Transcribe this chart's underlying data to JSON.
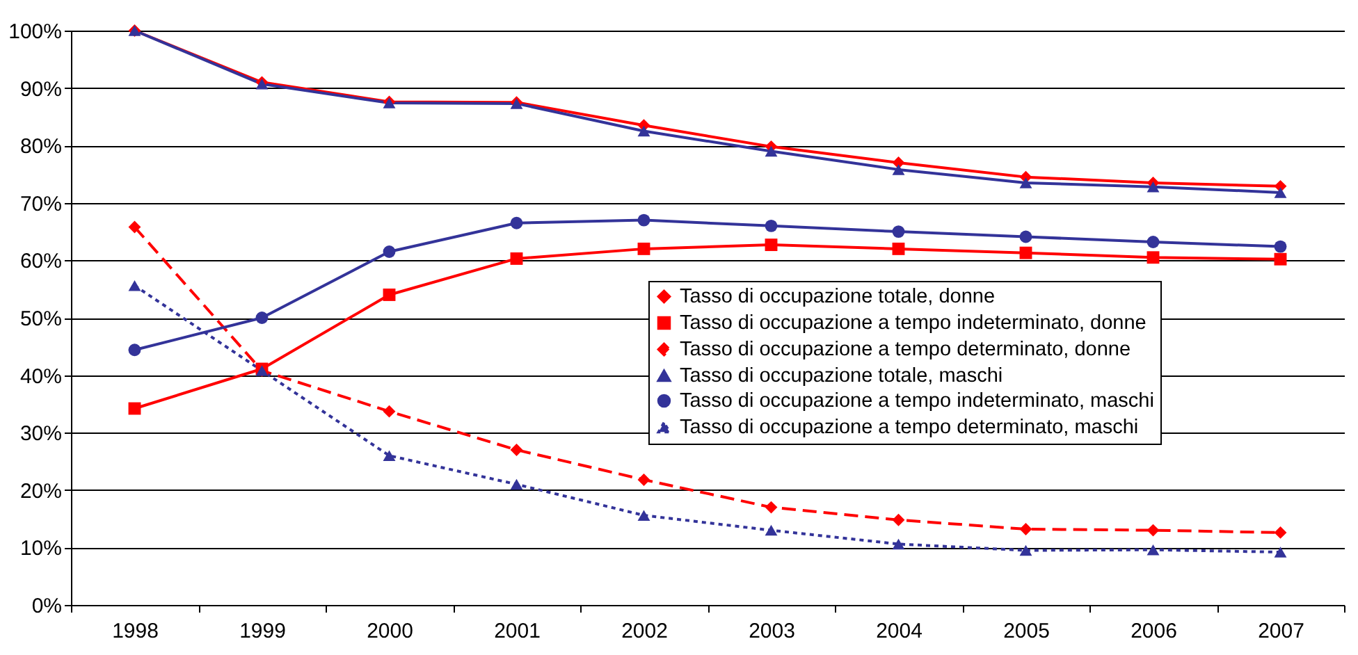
{
  "chart_data": {
    "type": "line",
    "categories": [
      "1998",
      "1999",
      "2000",
      "2001",
      "2002",
      "2003",
      "2004",
      "2005",
      "2006",
      "2007"
    ],
    "series": [
      {
        "name": "Tasso di occupazione totale, donne",
        "color": "#ff0000",
        "marker": "diamond",
        "line_style": "solid",
        "values": [
          100,
          91,
          87.6,
          87.5,
          83.5,
          79.8,
          77,
          74.5,
          73.5,
          72.9
        ]
      },
      {
        "name": "Tasso di occupazione a tempo indeterminato, donne",
        "color": "#ff0000",
        "marker": "square",
        "line_style": "solid",
        "values": [
          34.2,
          41.1,
          54,
          60.3,
          62,
          62.7,
          62,
          61.3,
          60.5,
          60.2
        ]
      },
      {
        "name": "Tasso di occupazione a tempo determinato, donne",
        "color": "#ff0000",
        "marker": "diamond",
        "line_style": "dashed",
        "values": [
          65.8,
          40.8,
          33.7,
          27,
          21.8,
          17,
          14.8,
          13.2,
          13,
          12.6
        ]
      },
      {
        "name": "Tasso di occupazione totale, maschi",
        "color": "#333399",
        "marker": "triangle",
        "line_style": "solid",
        "values": [
          100,
          90.7,
          87.4,
          87.3,
          82.5,
          79,
          75.8,
          73.5,
          72.8,
          71.8
        ]
      },
      {
        "name": "Tasso di occupazione a tempo indeterminato, maschi",
        "color": "#333399",
        "marker": "circle",
        "line_style": "solid",
        "values": [
          44.4,
          50,
          61.5,
          66.5,
          67,
          66,
          65,
          64.1,
          63.2,
          62.4
        ]
      },
      {
        "name": "Tasso di occupazione a tempo determinato, maschi",
        "color": "#333399",
        "marker": "triangle",
        "line_style": "dotted",
        "values": [
          55.6,
          40.8,
          26,
          21,
          15.6,
          13,
          10.6,
          9.5,
          9.6,
          9.2
        ]
      }
    ],
    "ylim": [
      0,
      100
    ],
    "yticks": [
      {
        "value": 0,
        "label": "0%"
      },
      {
        "value": 10,
        "label": "10%"
      },
      {
        "value": 20,
        "label": "20%"
      },
      {
        "value": 30,
        "label": "30%"
      },
      {
        "value": 40,
        "label": "40%"
      },
      {
        "value": 50,
        "label": "50%"
      },
      {
        "value": 60,
        "label": "60%"
      },
      {
        "value": 70,
        "label": "70%"
      },
      {
        "value": 80,
        "label": "80%"
      },
      {
        "value": 90,
        "label": "90%"
      },
      {
        "value": 100,
        "label": "100%"
      }
    ],
    "grid": "y",
    "legend": "right"
  }
}
